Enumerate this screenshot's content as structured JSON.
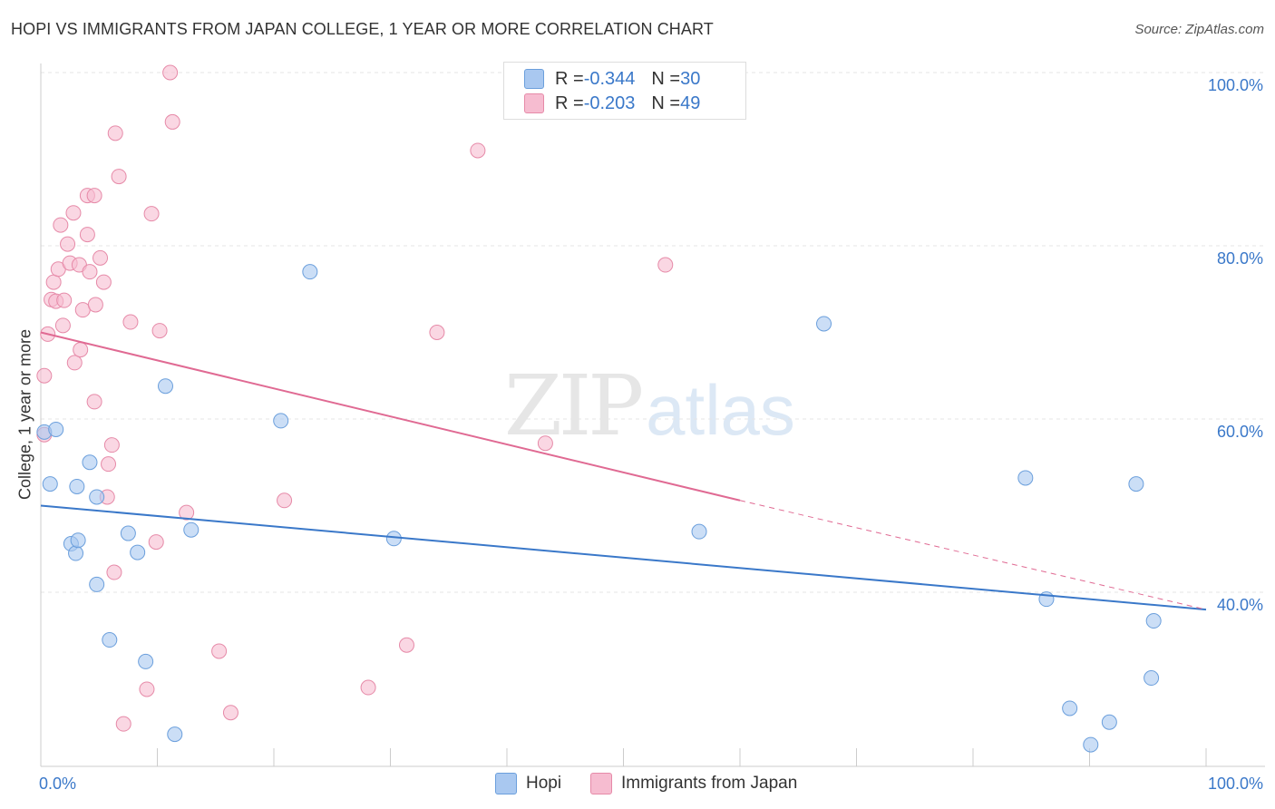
{
  "title": "HOPI VS IMMIGRANTS FROM JAPAN COLLEGE, 1 YEAR OR MORE CORRELATION CHART",
  "source": "Source: ZipAtlas.com",
  "watermark": {
    "zip": "ZIP",
    "atlas": "atlas"
  },
  "legend": {
    "hopi": {
      "r_label": "R = ",
      "r_value": "-0.344",
      "n_label": "N = ",
      "n_value": "30"
    },
    "japan": {
      "r_label": "R = ",
      "r_value": "-0.203",
      "n_label": "N = ",
      "n_value": "49"
    }
  },
  "bottom_legend": {
    "hopi": "Hopi",
    "japan": "Immigrants from Japan"
  },
  "colors": {
    "hopi_fill": "#a9c8f0",
    "hopi_stroke": "#6b9fdc",
    "hopi_line": "#3a78c9",
    "japan_fill": "#f6bcd0",
    "japan_stroke": "#e68aa8",
    "japan_line": "#e06a93",
    "tick_label": "#3a78c9",
    "grid": "#e5e5e5"
  },
  "chart_data": {
    "type": "scatter",
    "title": "HOPI VS IMMIGRANTS FROM JAPAN COLLEGE, 1 YEAR OR MORE CORRELATION CHART",
    "xlabel": "",
    "ylabel": "College, 1 year or more",
    "xlim": [
      0,
      100
    ],
    "ylim": [
      22,
      102
    ],
    "x_tick_labels": [
      "0.0%",
      "100.0%"
    ],
    "y_ticks": [
      40,
      60,
      80,
      100
    ],
    "y_tick_labels": [
      "40.0%",
      "60.0%",
      "80.0%",
      "100.0%"
    ],
    "series": [
      {
        "name": "Hopi",
        "points": [
          [
            0.3,
            58.5
          ],
          [
            0.8,
            52.5
          ],
          [
            1.3,
            58.8
          ],
          [
            2.6,
            45.6
          ],
          [
            3.0,
            44.5
          ],
          [
            3.1,
            52.2
          ],
          [
            3.2,
            46.0
          ],
          [
            4.2,
            55.0
          ],
          [
            4.8,
            51.0
          ],
          [
            4.8,
            40.9
          ],
          [
            5.9,
            34.5
          ],
          [
            7.5,
            46.8
          ],
          [
            8.3,
            44.6
          ],
          [
            9.0,
            32.0
          ],
          [
            10.7,
            63.8
          ],
          [
            11.5,
            23.6
          ],
          [
            12.9,
            47.2
          ],
          [
            20.6,
            59.8
          ],
          [
            23.1,
            77.0
          ],
          [
            30.3,
            46.2
          ],
          [
            56.5,
            47.0
          ],
          [
            67.2,
            71.0
          ],
          [
            84.5,
            53.2
          ],
          [
            86.3,
            39.2
          ],
          [
            88.3,
            26.6
          ],
          [
            90.1,
            22.4
          ],
          [
            91.7,
            25.0
          ],
          [
            94.0,
            52.5
          ],
          [
            95.5,
            36.7
          ],
          [
            95.3,
            30.1
          ]
        ]
      },
      {
        "name": "Immigrants from Japan",
        "points": [
          [
            0.3,
            58.2
          ],
          [
            0.3,
            65.0
          ],
          [
            0.6,
            69.8
          ],
          [
            0.9,
            73.8
          ],
          [
            1.1,
            75.8
          ],
          [
            1.3,
            73.6
          ],
          [
            1.5,
            77.3
          ],
          [
            1.7,
            82.4
          ],
          [
            1.9,
            70.8
          ],
          [
            2.0,
            73.7
          ],
          [
            2.3,
            80.2
          ],
          [
            2.5,
            78.0
          ],
          [
            2.8,
            83.8
          ],
          [
            2.9,
            66.5
          ],
          [
            3.3,
            77.8
          ],
          [
            3.4,
            68.0
          ],
          [
            3.6,
            72.6
          ],
          [
            4.0,
            85.8
          ],
          [
            4.0,
            81.3
          ],
          [
            4.2,
            77.0
          ],
          [
            4.6,
            85.8
          ],
          [
            4.6,
            62.0
          ],
          [
            4.7,
            73.2
          ],
          [
            5.1,
            78.6
          ],
          [
            5.4,
            75.8
          ],
          [
            5.7,
            51.0
          ],
          [
            5.8,
            54.8
          ],
          [
            6.1,
            57.0
          ],
          [
            6.3,
            42.3
          ],
          [
            6.4,
            93.0
          ],
          [
            6.7,
            88.0
          ],
          [
            7.1,
            24.8
          ],
          [
            7.7,
            71.2
          ],
          [
            9.1,
            28.8
          ],
          [
            9.5,
            83.7
          ],
          [
            9.9,
            45.8
          ],
          [
            10.2,
            70.2
          ],
          [
            11.1,
            100.0
          ],
          [
            11.3,
            94.3
          ],
          [
            12.5,
            49.2
          ],
          [
            15.3,
            33.2
          ],
          [
            16.3,
            26.1
          ],
          [
            20.9,
            50.6
          ],
          [
            28.1,
            29.0
          ],
          [
            31.4,
            33.9
          ],
          [
            34.0,
            70.0
          ],
          [
            37.5,
            91.0
          ],
          [
            43.3,
            57.2
          ],
          [
            53.6,
            77.8
          ]
        ]
      }
    ],
    "trend_lines": [
      {
        "series": "Hopi",
        "x": [
          0,
          100
        ],
        "y": [
          50.0,
          38.0
        ],
        "style": "solid"
      },
      {
        "series": "Immigrants from Japan",
        "x": [
          0,
          60
        ],
        "y": [
          70.0,
          50.6
        ],
        "style": "solid"
      },
      {
        "series": "Immigrants from Japan",
        "x": [
          60,
          100
        ],
        "y": [
          50.6,
          38.0
        ],
        "style": "dashed"
      }
    ]
  }
}
